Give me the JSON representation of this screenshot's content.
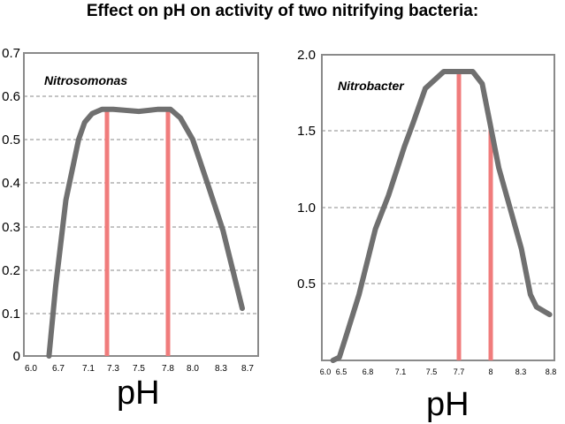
{
  "title": "Effect on pH on activity of two nitrifying bacteria:",
  "chart_data": [
    {
      "type": "line",
      "name": "Nitrosomonas",
      "label": "Nitrosomonas",
      "xlabel": "pH",
      "ylabel": "",
      "x_ticks": [
        "6.0",
        "6.7",
        "7.1",
        "7.3",
        "7.5",
        "7.8",
        "8.0",
        "8.3",
        "8.7"
      ],
      "y_ticks": [
        "0",
        "0.1",
        "0.2",
        "0.3",
        "0.4",
        "0.5",
        "0.6",
        "0.7"
      ],
      "ylim": [
        0,
        0.7
      ],
      "x": [
        6.46,
        6.63,
        6.8,
        6.97,
        7.05,
        7.13,
        7.21,
        7.3,
        7.5,
        7.7,
        7.82,
        7.9,
        8.0,
        8.17,
        8.33,
        8.49,
        8.62
      ],
      "values": [
        0.0,
        0.16,
        0.36,
        0.5,
        0.54,
        0.56,
        0.57,
        0.57,
        0.565,
        0.57,
        0.57,
        0.55,
        0.5,
        0.39,
        0.29,
        0.19,
        0.11
      ],
      "markers": [
        7.25,
        7.8
      ],
      "line_color": "#707070",
      "marker_color": "#f07c7c",
      "grid": "dashed"
    },
    {
      "type": "line",
      "name": "Nitrobacter",
      "label": "Nitrobacter",
      "xlabel": "pH",
      "ylabel": "",
      "x_ticks": [
        "6.0",
        "6.5",
        "6.8",
        "7.1",
        "7.5",
        "7.7",
        "8",
        "8.3",
        "8.8"
      ],
      "y_ticks": [
        "0.5",
        "1.0",
        "1.5",
        "2.0"
      ],
      "ylim": [
        0,
        2.0
      ],
      "x": [
        6.24,
        6.44,
        6.56,
        6.7,
        6.87,
        6.99,
        7.15,
        7.26,
        7.42,
        7.59,
        7.73,
        7.83,
        7.92,
        8.08,
        8.2,
        8.31,
        8.46,
        8.56,
        8.78
      ],
      "values": [
        0.0,
        0.02,
        0.17,
        0.43,
        0.86,
        1.08,
        1.4,
        1.55,
        1.78,
        1.89,
        1.89,
        1.89,
        1.81,
        1.26,
        0.98,
        0.73,
        0.43,
        0.35,
        0.3
      ],
      "markers": [
        7.7,
        8.0
      ],
      "line_color": "#707070",
      "marker_color": "#f07c7c",
      "grid": "dashed"
    }
  ]
}
